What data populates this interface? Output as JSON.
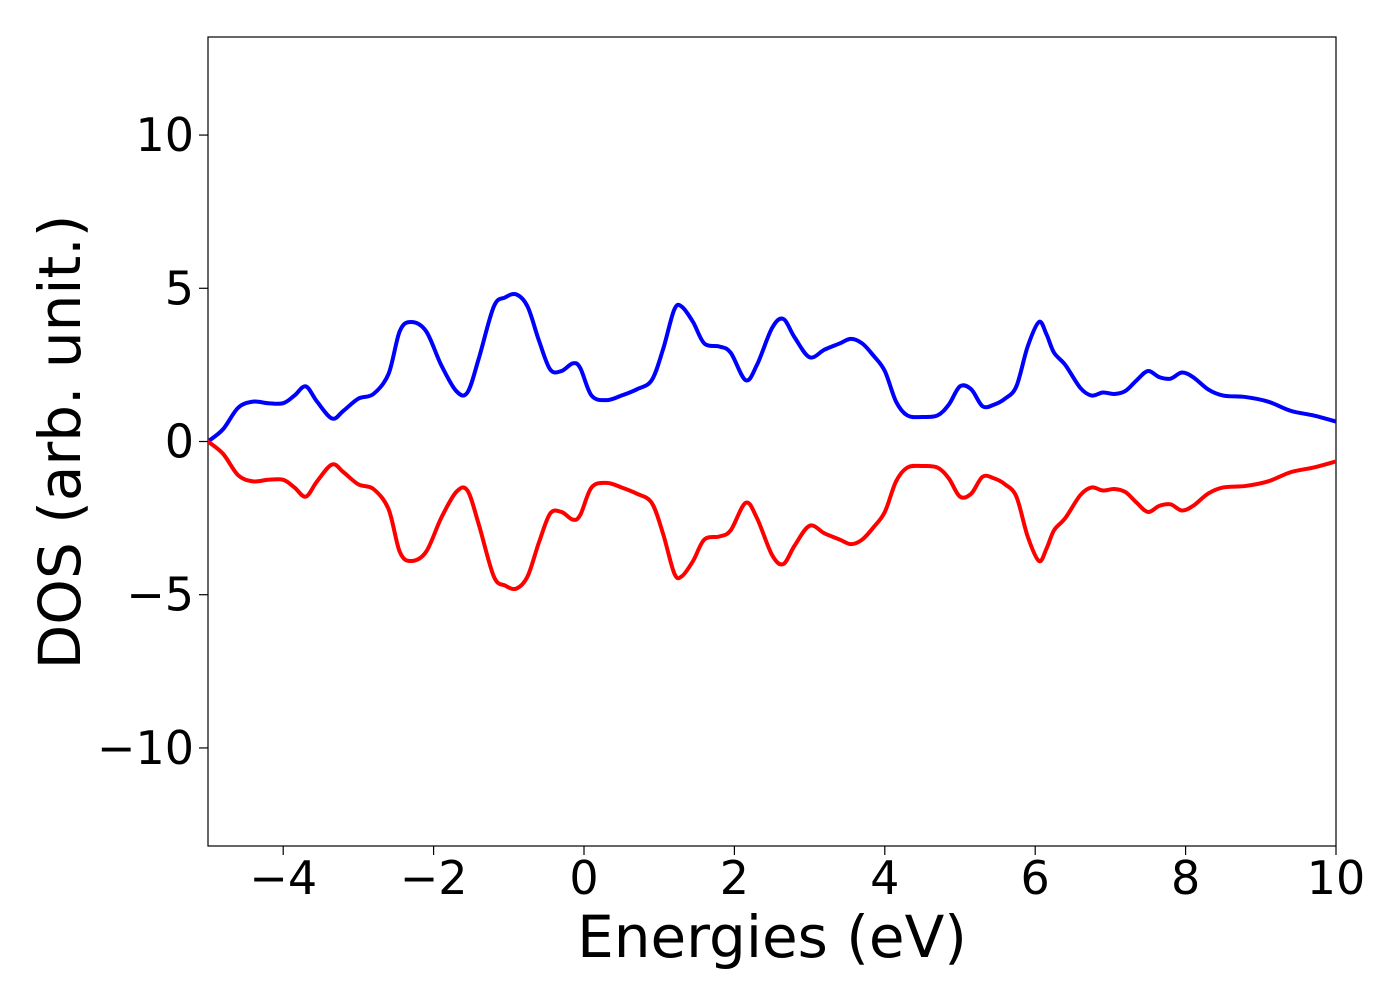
{
  "chart_data": {
    "type": "line",
    "title": "",
    "xlabel": "Energies (eV)",
    "ylabel": "DOS (arb. unit.)",
    "xlim": [
      -5,
      10
    ],
    "ylim": [
      -13.2,
      13.2
    ],
    "x_ticks": [
      -4,
      -2,
      0,
      2,
      4,
      6,
      8,
      10
    ],
    "y_ticks": [
      -10,
      -5,
      0,
      5,
      10
    ],
    "x_tick_labels": [
      "−4",
      "−2",
      "0",
      "2",
      "4",
      "6",
      "8",
      "10"
    ],
    "y_tick_labels": [
      "−10",
      "−5",
      "0",
      "5",
      "10"
    ],
    "grid": false,
    "legend": "none",
    "series": [
      {
        "color": "#0000ff",
        "x": [
          -5.0,
          -4.8,
          -4.6,
          -4.4,
          -4.2,
          -4.0,
          -3.85,
          -3.7,
          -3.55,
          -3.35,
          -3.2,
          -3.0,
          -2.8,
          -2.6,
          -2.45,
          -2.3,
          -2.1,
          -1.9,
          -1.7,
          -1.55,
          -1.4,
          -1.2,
          -1.05,
          -0.9,
          -0.75,
          -0.6,
          -0.45,
          -0.3,
          -0.15,
          -0.05,
          0.1,
          0.3,
          0.5,
          0.7,
          0.9,
          1.05,
          1.2,
          1.3,
          1.45,
          1.6,
          1.8,
          1.95,
          2.15,
          2.3,
          2.5,
          2.65,
          2.8,
          3.0,
          3.2,
          3.4,
          3.55,
          3.7,
          3.85,
          4.0,
          4.15,
          4.3,
          4.5,
          4.7,
          4.85,
          5.0,
          5.15,
          5.3,
          5.45,
          5.6,
          5.75,
          5.9,
          6.05,
          6.15,
          6.25,
          6.4,
          6.6,
          6.75,
          6.9,
          7.05,
          7.2,
          7.35,
          7.5,
          7.65,
          7.8,
          7.95,
          8.1,
          8.3,
          8.5,
          8.8,
          9.1,
          9.4,
          9.7,
          10.0
        ],
        "y": [
          0.0,
          0.4,
          1.1,
          1.3,
          1.25,
          1.25,
          1.5,
          1.8,
          1.3,
          0.75,
          1.0,
          1.4,
          1.55,
          2.2,
          3.6,
          3.9,
          3.6,
          2.5,
          1.65,
          1.6,
          2.7,
          4.4,
          4.7,
          4.8,
          4.4,
          3.3,
          2.35,
          2.3,
          2.55,
          2.4,
          1.5,
          1.35,
          1.5,
          1.7,
          2.0,
          3.0,
          4.3,
          4.4,
          3.9,
          3.2,
          3.1,
          2.9,
          2.0,
          2.5,
          3.7,
          4.0,
          3.4,
          2.75,
          3.0,
          3.2,
          3.35,
          3.2,
          2.8,
          2.3,
          1.3,
          0.85,
          0.8,
          0.85,
          1.2,
          1.8,
          1.7,
          1.15,
          1.2,
          1.4,
          1.8,
          3.1,
          3.9,
          3.5,
          2.9,
          2.5,
          1.75,
          1.5,
          1.6,
          1.55,
          1.65,
          2.0,
          2.3,
          2.1,
          2.05,
          2.25,
          2.1,
          1.7,
          1.5,
          1.45,
          1.3,
          1.0,
          0.85,
          0.65
        ]
      },
      {
        "color": "#ff0000",
        "x": [
          -5.0,
          -4.8,
          -4.6,
          -4.4,
          -4.2,
          -4.0,
          -3.85,
          -3.7,
          -3.55,
          -3.35,
          -3.2,
          -3.0,
          -2.8,
          -2.6,
          -2.45,
          -2.3,
          -2.1,
          -1.9,
          -1.7,
          -1.55,
          -1.4,
          -1.2,
          -1.05,
          -0.9,
          -0.75,
          -0.6,
          -0.45,
          -0.3,
          -0.15,
          -0.05,
          0.1,
          0.3,
          0.5,
          0.7,
          0.9,
          1.05,
          1.2,
          1.3,
          1.45,
          1.6,
          1.8,
          1.95,
          2.15,
          2.3,
          2.5,
          2.65,
          2.8,
          3.0,
          3.2,
          3.4,
          3.55,
          3.7,
          3.85,
          4.0,
          4.15,
          4.3,
          4.5,
          4.7,
          4.85,
          5.0,
          5.15,
          5.3,
          5.45,
          5.6,
          5.75,
          5.9,
          6.05,
          6.15,
          6.25,
          6.4,
          6.6,
          6.75,
          6.9,
          7.05,
          7.2,
          7.35,
          7.5,
          7.65,
          7.8,
          7.95,
          8.1,
          8.3,
          8.5,
          8.8,
          9.1,
          9.4,
          9.7,
          10.0
        ],
        "y": [
          0.0,
          -0.4,
          -1.1,
          -1.3,
          -1.25,
          -1.25,
          -1.5,
          -1.8,
          -1.3,
          -0.75,
          -1.0,
          -1.4,
          -1.55,
          -2.2,
          -3.6,
          -3.9,
          -3.6,
          -2.5,
          -1.65,
          -1.6,
          -2.7,
          -4.4,
          -4.7,
          -4.8,
          -4.4,
          -3.3,
          -2.35,
          -2.3,
          -2.55,
          -2.4,
          -1.5,
          -1.35,
          -1.5,
          -1.7,
          -2.0,
          -3.0,
          -4.3,
          -4.4,
          -3.9,
          -3.2,
          -3.1,
          -2.9,
          -2.0,
          -2.5,
          -3.7,
          -4.0,
          -3.4,
          -2.75,
          -3.0,
          -3.2,
          -3.35,
          -3.2,
          -2.8,
          -2.3,
          -1.3,
          -0.85,
          -0.8,
          -0.85,
          -1.2,
          -1.8,
          -1.7,
          -1.15,
          -1.2,
          -1.4,
          -1.8,
          -3.1,
          -3.9,
          -3.5,
          -2.9,
          -2.5,
          -1.75,
          -1.5,
          -1.6,
          -1.55,
          -1.65,
          -2.0,
          -2.3,
          -2.1,
          -2.05,
          -2.25,
          -2.1,
          -1.7,
          -1.5,
          -1.45,
          -1.3,
          -1.0,
          -0.85,
          -0.65
        ]
      }
    ]
  }
}
